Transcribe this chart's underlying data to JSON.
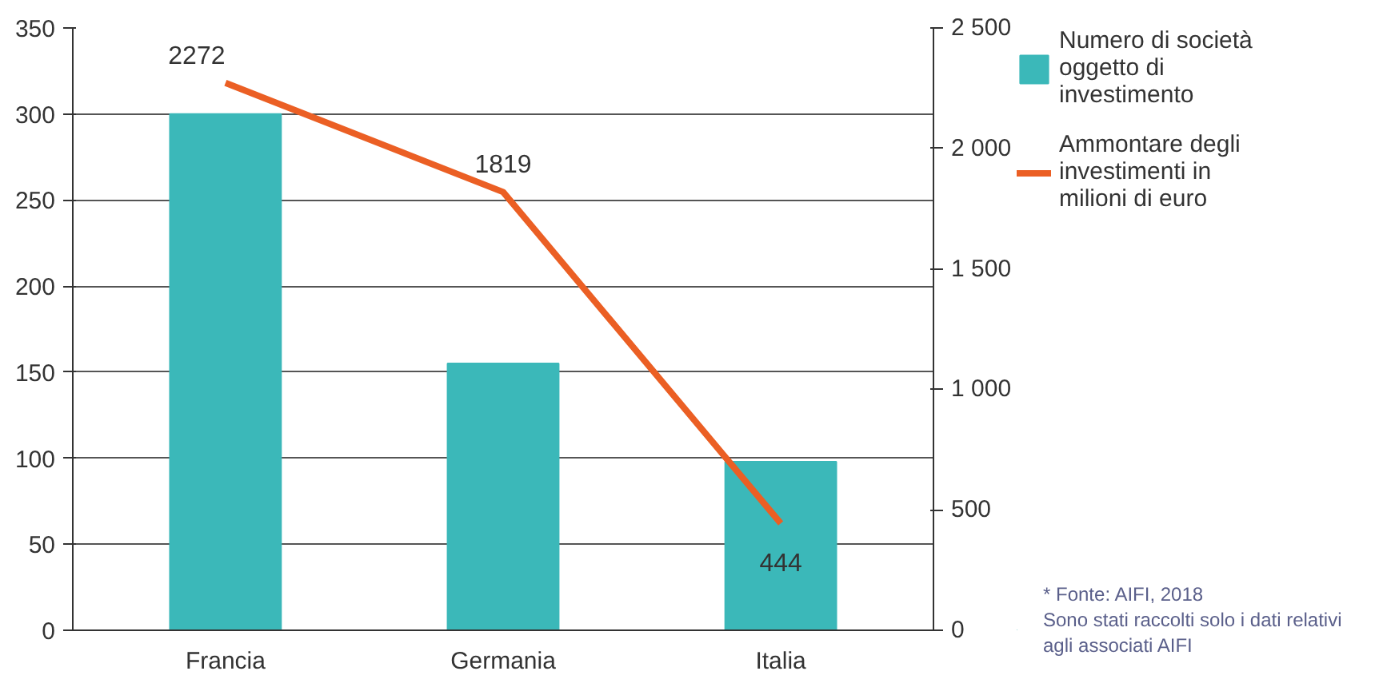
{
  "chart_data": {
    "type": "bar",
    "categories": [
      "Francia",
      "Germania",
      "Italia"
    ],
    "series": [
      {
        "name": "Numero di società oggetto di investimento",
        "color": "#3bb8b9",
        "values": [
          300,
          155,
          98
        ]
      },
      {
        "name": "Ammontare degli investimenti in milioni di euro",
        "type": "line",
        "axis": "y2",
        "color": "#eb5f24",
        "values": [
          2272,
          1819,
          444
        ],
        "value_labels": [
          "2272",
          "1819",
          "444"
        ]
      }
    ],
    "ylim": [
      0,
      350
    ],
    "yticks": [
      0,
      50,
      100,
      150,
      200,
      250,
      300,
      350
    ],
    "y2lim": [
      0,
      2500
    ],
    "y2ticks": [
      {
        "value": 0,
        "label": "0"
      },
      {
        "value": 500,
        "label": "500"
      },
      {
        "value": 1000,
        "label": "1 000"
      },
      {
        "value": 1500,
        "label": "1 500"
      },
      {
        "value": 2000,
        "label": "2 000"
      },
      {
        "value": 2500,
        "label": "2 500"
      }
    ],
    "grid": "y",
    "legend": "top right",
    "annotations": [
      "* Fonte: AIFI, 2018",
      "Sono stati raccolti solo i dati relativi agli associati AIFI"
    ]
  }
}
